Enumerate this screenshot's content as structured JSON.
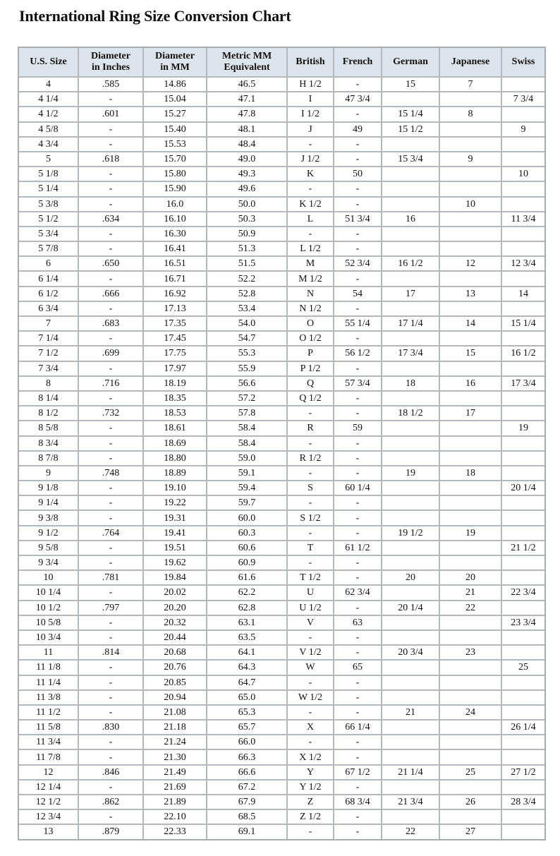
{
  "title": "International Ring Size Conversion Chart",
  "columns": [
    [
      "U.S. Size"
    ],
    [
      "Diameter",
      "in Inches"
    ],
    [
      "Diameter",
      "in MM"
    ],
    [
      "Metric MM",
      "Equivalent"
    ],
    [
      "British"
    ],
    [
      "French"
    ],
    [
      "German"
    ],
    [
      "Japanese"
    ],
    [
      "Swiss"
    ]
  ],
  "rows": [
    [
      "4",
      ".585",
      "14.86",
      "46.5",
      "H 1/2",
      "-",
      "15",
      "7",
      ""
    ],
    [
      "4 1/4",
      "-",
      "15.04",
      "47.1",
      "I",
      "47 3/4",
      "",
      "",
      "7 3/4"
    ],
    [
      "4 1/2",
      ".601",
      "15.27",
      "47.8",
      "I 1/2",
      "-",
      "15 1/4",
      "8",
      ""
    ],
    [
      "4 5/8",
      "-",
      "15.40",
      "48.1",
      "J",
      "49",
      "15 1/2",
      "",
      "9"
    ],
    [
      "4 3/4",
      "-",
      "15.53",
      "48.4",
      "-",
      "-",
      "",
      "",
      ""
    ],
    [
      "5",
      ".618",
      "15.70",
      "49.0",
      "J 1/2",
      "-",
      "15 3/4",
      "9",
      ""
    ],
    [
      "5 1/8",
      "-",
      "15.80",
      "49.3",
      "K",
      "50",
      "",
      "",
      "10"
    ],
    [
      "5 1/4",
      "-",
      "15.90",
      "49.6",
      "-",
      "-",
      "",
      "",
      ""
    ],
    [
      "5 3/8",
      "-",
      "16.0",
      "50.0",
      "K 1/2",
      "-",
      "",
      "10",
      ""
    ],
    [
      "5 1/2",
      ".634",
      "16.10",
      "50.3",
      "L",
      "51 3/4",
      "16",
      "",
      "11 3/4"
    ],
    [
      "5 3/4",
      "-",
      "16.30",
      "50.9",
      "-",
      "-",
      "",
      "",
      ""
    ],
    [
      "5 7/8",
      "-",
      "16.41",
      "51.3",
      "L 1/2",
      "-",
      "",
      "",
      ""
    ],
    [
      "6",
      ".650",
      "16.51",
      "51.5",
      "M",
      "52 3/4",
      "16 1/2",
      "12",
      "12 3/4"
    ],
    [
      "6 1/4",
      "-",
      "16.71",
      "52.2",
      "M 1/2",
      "-",
      "",
      "",
      ""
    ],
    [
      "6 1/2",
      ".666",
      "16.92",
      "52.8",
      "N",
      "54",
      "17",
      "13",
      "14"
    ],
    [
      "6 3/4",
      "-",
      "17.13",
      "53.4",
      "N 1/2",
      "-",
      "",
      "",
      ""
    ],
    [
      "7",
      ".683",
      "17.35",
      "54.0",
      "O",
      "55 1/4",
      "17 1/4",
      "14",
      "15 1/4"
    ],
    [
      "7 1/4",
      "-",
      "17.45",
      "54.7",
      "O 1/2",
      "-",
      "",
      "",
      ""
    ],
    [
      "7 1/2",
      ".699",
      "17.75",
      "55.3",
      "P",
      "56 1/2",
      "17 3/4",
      "15",
      "16 1/2"
    ],
    [
      "7 3/4",
      "-",
      "17.97",
      "55.9",
      "P 1/2",
      "-",
      "",
      "",
      ""
    ],
    [
      "8",
      ".716",
      "18.19",
      "56.6",
      "Q",
      "57 3/4",
      "18",
      "16",
      "17 3/4"
    ],
    [
      "8 1/4",
      "-",
      "18.35",
      "57.2",
      "Q 1/2",
      "-",
      "",
      "",
      ""
    ],
    [
      "8 1/2",
      ".732",
      "18.53",
      "57.8",
      "-",
      "-",
      "18 1/2",
      "17",
      ""
    ],
    [
      "8 5/8",
      "-",
      "18.61",
      "58.4",
      "R",
      "59",
      "",
      "",
      "19"
    ],
    [
      "8 3/4",
      "-",
      "18.69",
      "58.4",
      "-",
      "-",
      "",
      "",
      ""
    ],
    [
      "8 7/8",
      "-",
      "18.80",
      "59.0",
      "R 1/2",
      "-",
      "",
      "",
      ""
    ],
    [
      "9",
      ".748",
      "18.89",
      "59.1",
      "-",
      "-",
      "19",
      "18",
      ""
    ],
    [
      "9 1/8",
      "-",
      "19.10",
      "59.4",
      "S",
      "60 1/4",
      "",
      "",
      "20 1/4"
    ],
    [
      "9 1/4",
      "-",
      "19.22",
      "59.7",
      "-",
      "-",
      "",
      "",
      ""
    ],
    [
      "9 3/8",
      "-",
      "19.31",
      "60.0",
      "S 1/2",
      "-",
      "",
      "",
      ""
    ],
    [
      "9 1/2",
      ".764",
      "19.41",
      "60.3",
      "-",
      "-",
      "19 1/2",
      "19",
      ""
    ],
    [
      "9 5/8",
      "-",
      "19.51",
      "60.6",
      "T",
      "61 1/2",
      "",
      "",
      "21 1/2"
    ],
    [
      "9 3/4",
      "-",
      "19.62",
      "60.9",
      "-",
      "-",
      "",
      "",
      ""
    ],
    [
      "10",
      ".781",
      "19.84",
      "61.6",
      "T 1/2",
      "-",
      "20",
      "20",
      ""
    ],
    [
      "10 1/4",
      "-",
      "20.02",
      "62.2",
      "U",
      "62 3/4",
      "",
      "21",
      "22 3/4"
    ],
    [
      "10 1/2",
      ".797",
      "20.20",
      "62.8",
      "U 1/2",
      "-",
      "20 1/4",
      "22",
      ""
    ],
    [
      "10 5/8",
      "-",
      "20.32",
      "63.1",
      "V",
      "63",
      "",
      "",
      "23 3/4"
    ],
    [
      "10 3/4",
      "-",
      "20.44",
      "63.5",
      "-",
      "-",
      "",
      "",
      ""
    ],
    [
      "11",
      ".814",
      "20.68",
      "64.1",
      "V 1/2",
      "-",
      "20 3/4",
      "23",
      ""
    ],
    [
      "11 1/8",
      "-",
      "20.76",
      "64.3",
      "W",
      "65",
      "",
      "",
      "25"
    ],
    [
      "11 1/4",
      "-",
      "20.85",
      "64.7",
      "-",
      "-",
      "",
      "",
      ""
    ],
    [
      "11 3/8",
      "-",
      "20.94",
      "65.0",
      "W 1/2",
      "-",
      "",
      "",
      ""
    ],
    [
      "11 1/2",
      "-",
      "21.08",
      "65.3",
      "-",
      "-",
      "21",
      "24",
      ""
    ],
    [
      "11 5/8",
      ".830",
      "21.18",
      "65.7",
      "X",
      "66 1/4",
      "",
      "",
      "26 1/4"
    ],
    [
      "11 3/4",
      "-",
      "21.24",
      "66.0",
      "-",
      "-",
      "",
      "",
      ""
    ],
    [
      "11 7/8",
      "-",
      "21.30",
      "66.3",
      "X 1/2",
      "-",
      "",
      "",
      ""
    ],
    [
      "12",
      ".846",
      "21.49",
      "66.6",
      "Y",
      "67 1/2",
      "21 1/4",
      "25",
      "27 1/2"
    ],
    [
      "12 1/4",
      "-",
      "21.69",
      "67.2",
      "Y 1/2",
      "-",
      "",
      "",
      ""
    ],
    [
      "12 1/2",
      ".862",
      "21.89",
      "67.9",
      "Z",
      "68 3/4",
      "21 3/4",
      "26",
      "28 3/4"
    ],
    [
      "12 3/4",
      "-",
      "22.10",
      "68.5",
      "Z 1/2",
      "-",
      "",
      "",
      ""
    ],
    [
      "13",
      ".879",
      "22.33",
      "69.1",
      "-",
      "-",
      "22",
      "27",
      ""
    ]
  ]
}
